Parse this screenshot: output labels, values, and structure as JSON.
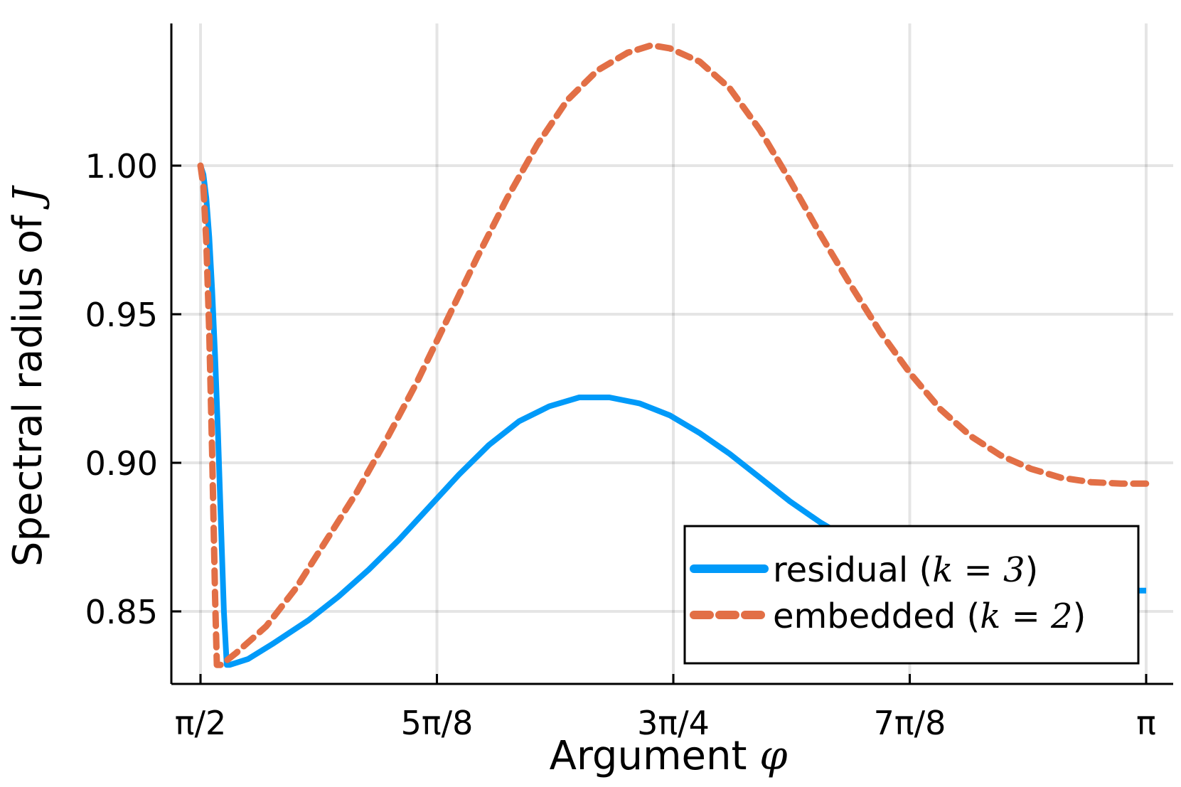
{
  "chart_data": {
    "type": "line",
    "xlabel": "Argument φ",
    "ylabel": "Spectral radius of J",
    "x_unit": "radians",
    "xlim": [
      1.5708,
      3.1416
    ],
    "ylim": [
      0.828,
      1.05
    ],
    "grid": true,
    "legend_position": "bottom-right",
    "x_ticks": [
      {
        "value": 1.5708,
        "label": "π/2"
      },
      {
        "value": 1.9635,
        "label": "5π/8"
      },
      {
        "value": 2.3562,
        "label": "3π/4"
      },
      {
        "value": 2.7489,
        "label": "7π/8"
      },
      {
        "value": 3.1416,
        "label": "π"
      }
    ],
    "y_ticks": [
      {
        "value": 0.85,
        "label": "0.85"
      },
      {
        "value": 0.9,
        "label": "0.90"
      },
      {
        "value": 0.95,
        "label": "0.95"
      },
      {
        "value": 1.0,
        "label": "1.00"
      }
    ],
    "series": [
      {
        "name": "residual (k = 3)",
        "color": "#009af9",
        "dash": "solid",
        "points": [
          [
            1.5708,
            1.0
          ],
          [
            1.5756,
            0.997
          ],
          [
            1.5805,
            0.989
          ],
          [
            1.5853,
            0.976
          ],
          [
            1.5902,
            0.958
          ],
          [
            1.595,
            0.936
          ],
          [
            1.5999,
            0.91
          ],
          [
            1.6047,
            0.88
          ],
          [
            1.6096,
            0.85
          ],
          [
            1.6144,
            0.832
          ],
          [
            1.6195,
            0.832
          ],
          [
            1.65,
            0.834
          ],
          [
            1.69,
            0.839
          ],
          [
            1.75,
            0.847
          ],
          [
            1.8,
            0.855
          ],
          [
            1.85,
            0.864
          ],
          [
            1.9,
            0.874
          ],
          [
            1.95,
            0.885
          ],
          [
            2.0,
            0.896
          ],
          [
            2.05,
            0.906
          ],
          [
            2.1,
            0.914
          ],
          [
            2.15,
            0.919
          ],
          [
            2.2,
            0.922
          ],
          [
            2.25,
            0.922
          ],
          [
            2.3,
            0.92
          ],
          [
            2.35,
            0.916
          ],
          [
            2.4,
            0.91
          ],
          [
            2.45,
            0.903
          ],
          [
            2.5,
            0.895
          ],
          [
            2.55,
            0.887
          ],
          [
            2.6,
            0.88
          ],
          [
            2.65,
            0.874
          ],
          [
            2.7,
            0.869
          ],
          [
            2.75,
            0.864
          ],
          [
            2.8,
            0.8605
          ],
          [
            2.85,
            0.8585
          ],
          [
            2.9,
            0.8575
          ],
          [
            2.95,
            0.857
          ],
          [
            3.0,
            0.857
          ],
          [
            3.05,
            0.857
          ],
          [
            3.1,
            0.857
          ],
          [
            3.1416,
            0.857
          ]
        ]
      },
      {
        "name": "embedded (k = 2)",
        "color": "#e26f46",
        "dash": "dashed",
        "points": [
          [
            1.5708,
            1.0
          ],
          [
            1.5756,
            0.993
          ],
          [
            1.5805,
            0.974
          ],
          [
            1.5853,
            0.944
          ],
          [
            1.5902,
            0.903
          ],
          [
            1.595,
            0.855
          ],
          [
            1.598,
            0.832
          ],
          [
            1.605,
            0.832
          ],
          [
            1.63,
            0.836
          ],
          [
            1.68,
            0.845
          ],
          [
            1.73,
            0.858
          ],
          [
            1.78,
            0.874
          ],
          [
            1.83,
            0.89
          ],
          [
            1.88,
            0.908
          ],
          [
            1.93,
            0.927
          ],
          [
            1.98,
            0.948
          ],
          [
            2.03,
            0.969
          ],
          [
            2.08,
            0.989
          ],
          [
            2.13,
            1.007
          ],
          [
            2.18,
            1.022
          ],
          [
            2.23,
            1.032
          ],
          [
            2.28,
            1.038
          ],
          [
            2.32,
            1.0405
          ],
          [
            2.35,
            1.0395
          ],
          [
            2.4,
            1.035
          ],
          [
            2.45,
            1.026
          ],
          [
            2.5,
            1.012
          ],
          [
            2.55,
            0.995
          ],
          [
            2.6,
            0.977
          ],
          [
            2.65,
            0.96
          ],
          [
            2.7,
            0.944
          ],
          [
            2.75,
            0.93
          ],
          [
            2.8,
            0.918
          ],
          [
            2.85,
            0.909
          ],
          [
            2.9,
            0.9025
          ],
          [
            2.95,
            0.898
          ],
          [
            3.0,
            0.895
          ],
          [
            3.05,
            0.8935
          ],
          [
            3.1,
            0.893
          ],
          [
            3.1416,
            0.893
          ]
        ]
      }
    ]
  }
}
